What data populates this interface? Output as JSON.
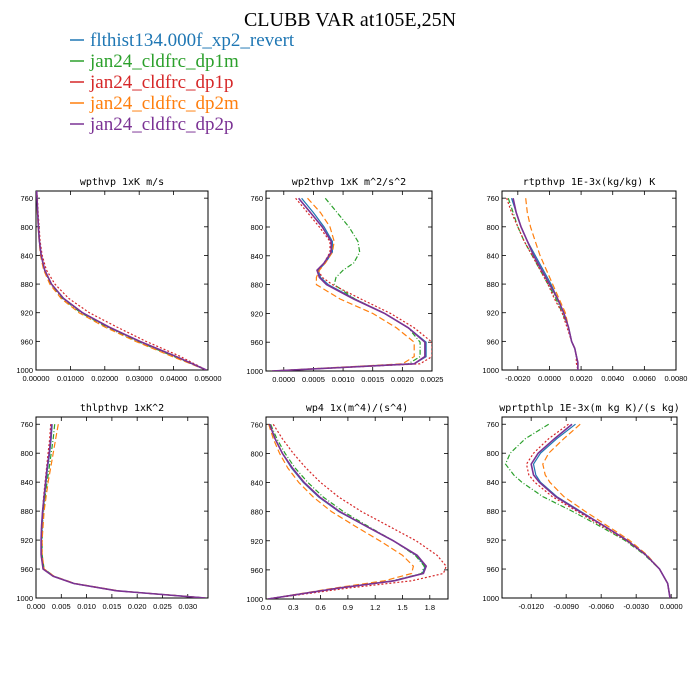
{
  "title": "CLUBB VAR at105E,25N",
  "legend": [
    {
      "label": "flthist134.000f_xp2_revert",
      "color": "#1f77b4"
    },
    {
      "label": "jan24_cldfrc_dp1m",
      "color": "#2ca02c"
    },
    {
      "label": "jan24_cldfrc_dp1p",
      "color": "#d62728"
    },
    {
      "label": "jan24_cldfrc_dp2m",
      "color": "#ff7f0e"
    },
    {
      "label": "jan24_cldfrc_dp2p",
      "color": "#7b3294"
    }
  ],
  "chart_data": [
    {
      "type": "line",
      "title": "wpthvp  1xK m/s",
      "xlim": [
        0,
        0.05
      ],
      "ylim": [
        750,
        1000
      ],
      "xticks": [
        "0.00000",
        "0.01000",
        "0.02000",
        "0.03000",
        "0.04000",
        "0.05000"
      ],
      "yticks": [
        "760",
        "800",
        "840",
        "880",
        "920",
        "960",
        "1000"
      ],
      "y": [
        750,
        760,
        780,
        800,
        820,
        840,
        860,
        880,
        900,
        920,
        940,
        960,
        980,
        1000
      ],
      "series": [
        {
          "x": [
            0.0002,
            0.0003,
            0.0005,
            0.0007,
            0.001,
            0.0015,
            0.0025,
            0.0045,
            0.008,
            0.0135,
            0.021,
            0.03,
            0.04,
            0.0495
          ]
        },
        {
          "x": [
            0.0002,
            0.0003,
            0.0005,
            0.0007,
            0.001,
            0.0015,
            0.0024,
            0.0043,
            0.0077,
            0.013,
            0.0205,
            0.0295,
            0.0395,
            0.0495
          ]
        },
        {
          "x": [
            0.0002,
            0.0004,
            0.0006,
            0.0009,
            0.0012,
            0.0018,
            0.003,
            0.0055,
            0.0095,
            0.0155,
            0.0235,
            0.032,
            0.0415,
            0.0495
          ]
        },
        {
          "x": [
            0.0002,
            0.0003,
            0.0004,
            0.0006,
            0.0009,
            0.0013,
            0.0022,
            0.004,
            0.0073,
            0.0125,
            0.02,
            0.029,
            0.039,
            0.0495
          ]
        },
        {
          "x": [
            0.0002,
            0.0003,
            0.0005,
            0.0007,
            0.001,
            0.0015,
            0.0025,
            0.0045,
            0.008,
            0.0135,
            0.0212,
            0.0302,
            0.0402,
            0.0495
          ]
        }
      ]
    },
    {
      "type": "line",
      "title": "wp2thvp  1xK m^2/s^2",
      "xlim": [
        -0.0003,
        0.0025
      ],
      "ylim": [
        750,
        1000
      ],
      "xticks": [
        "0.0000",
        "0.0005",
        "0.0010",
        "0.0015",
        "0.0020",
        "0.0025"
      ],
      "yticks": [
        "760",
        "800",
        "840",
        "880",
        "920",
        "960",
        "1000"
      ],
      "y": [
        760,
        780,
        800,
        820,
        835,
        850,
        860,
        870,
        880,
        900,
        920,
        940,
        960,
        980,
        990,
        1000
      ],
      "series": [
        {
          "x": [
            0.0003,
            0.0005,
            0.00068,
            0.00082,
            0.00082,
            0.0007,
            0.00058,
            0.00062,
            0.00075,
            0.0012,
            0.0017,
            0.0021,
            0.0024,
            0.0024,
            0.0022,
            -0.0002
          ]
        },
        {
          "x": [
            0.0007,
            0.0009,
            0.0011,
            0.00125,
            0.00128,
            0.00118,
            0.001,
            0.00088,
            0.00085,
            0.0012,
            0.0017,
            0.0021,
            0.0023,
            0.0023,
            0.0021,
            -0.0002
          ]
        },
        {
          "x": [
            0.0002,
            0.0004,
            0.0006,
            0.00078,
            0.00078,
            0.00068,
            0.00058,
            0.00065,
            0.00082,
            0.0013,
            0.0018,
            0.0022,
            0.0025,
            0.0025,
            0.0023,
            -0.0002
          ]
        },
        {
          "x": [
            0.0004,
            0.00062,
            0.00078,
            0.00085,
            0.00082,
            0.0007,
            0.0006,
            0.00055,
            0.00055,
            0.00095,
            0.0015,
            0.0019,
            0.0022,
            0.0022,
            0.002,
            -0.0002
          ]
        },
        {
          "x": [
            0.00025,
            0.00045,
            0.00065,
            0.0008,
            0.0008,
            0.00068,
            0.00056,
            0.0006,
            0.00072,
            0.00118,
            0.0017,
            0.0021,
            0.00238,
            0.00238,
            0.0022,
            -0.0002
          ]
        }
      ]
    },
    {
      "type": "line",
      "title": "rtpthvp  1E-3x(kg/kg) K",
      "xlim": [
        -0.003,
        0.008
      ],
      "ylim": [
        750,
        1000
      ],
      "xticks": [
        "-0.0020",
        "0.0000",
        "0.0020",
        "0.0040",
        "0.0060",
        "0.0080"
      ],
      "yticks": [
        "760",
        "800",
        "840",
        "880",
        "920",
        "960",
        "1000"
      ],
      "y": [
        760,
        780,
        800,
        820,
        840,
        860,
        880,
        900,
        920,
        940,
        960,
        970,
        980,
        990,
        1000
      ],
      "series": [
        {
          "x": [
            -0.0024,
            -0.0021,
            -0.0018,
            -0.0014,
            -0.0009,
            -0.0004,
            0.0001,
            0.0005,
            0.0009,
            0.0012,
            0.0014,
            0.0016,
            0.0017,
            0.0018,
            0.0018
          ]
        },
        {
          "x": [
            -0.0026,
            -0.0023,
            -0.002,
            -0.0016,
            -0.0011,
            -0.0006,
            -0.0001,
            0.0004,
            0.0008,
            0.0012,
            0.0014,
            0.0016,
            0.0017,
            0.0018,
            0.0018
          ]
        },
        {
          "x": [
            -0.0027,
            -0.0024,
            -0.002,
            -0.0016,
            -0.0011,
            -0.0006,
            -0.0001,
            0.0003,
            0.0008,
            0.0011,
            0.0014,
            0.0016,
            0.0017,
            0.0017,
            0.0018
          ]
        },
        {
          "x": [
            -0.0015,
            -0.0014,
            -0.0012,
            -0.0009,
            -0.0006,
            -0.0002,
            0.0002,
            0.0006,
            0.001,
            0.0012,
            0.0014,
            0.0016,
            0.0017,
            0.0018,
            0.0018
          ]
        },
        {
          "x": [
            -0.0023,
            -0.0021,
            -0.0018,
            -0.0014,
            -0.001,
            -0.0005,
            0,
            0.0005,
            0.0009,
            0.0012,
            0.0014,
            0.0016,
            0.0017,
            0.0018,
            0.0018
          ]
        }
      ]
    },
    {
      "type": "line",
      "title": "thlpthvp  1xK^2",
      "xlim": [
        0,
        0.034
      ],
      "ylim": [
        750,
        1000
      ],
      "xticks": [
        "0.000",
        "0.005",
        "0.010",
        "0.015",
        "0.020",
        "0.025",
        "0.030"
      ],
      "yticks": [
        "760",
        "800",
        "840",
        "880",
        "920",
        "960",
        "1000"
      ],
      "y": [
        760,
        780,
        800,
        820,
        840,
        860,
        880,
        900,
        920,
        940,
        960,
        970,
        980,
        990,
        1000
      ],
      "series": [
        {
          "x": [
            0.0032,
            0.003,
            0.0027,
            0.0023,
            0.002,
            0.0017,
            0.0014,
            0.0012,
            0.0011,
            0.0011,
            0.0015,
            0.0035,
            0.0075,
            0.016,
            0.0335
          ]
        },
        {
          "x": [
            0.0037,
            0.0034,
            0.003,
            0.0026,
            0.0022,
            0.0018,
            0.0015,
            0.0013,
            0.0012,
            0.0012,
            0.0016,
            0.0036,
            0.0076,
            0.0162,
            0.0335
          ]
        },
        {
          "x": [
            0.0029,
            0.0027,
            0.0024,
            0.0021,
            0.0018,
            0.0015,
            0.0013,
            0.0011,
            0.001,
            0.001,
            0.0014,
            0.0034,
            0.0074,
            0.0158,
            0.0335
          ]
        },
        {
          "x": [
            0.0044,
            0.0039,
            0.0034,
            0.0029,
            0.0024,
            0.002,
            0.0016,
            0.0014,
            0.0012,
            0.0012,
            0.0016,
            0.0036,
            0.0077,
            0.0163,
            0.0335
          ]
        },
        {
          "x": [
            0.0031,
            0.0029,
            0.0026,
            0.0022,
            0.0019,
            0.0016,
            0.0013,
            0.0011,
            0.001,
            0.001,
            0.0014,
            0.0034,
            0.0075,
            0.016,
            0.0335
          ]
        }
      ]
    },
    {
      "type": "line",
      "title": "wp4  1x(m^4)/(s^4)",
      "xlim": [
        0,
        2
      ],
      "ylim": [
        750,
        1000
      ],
      "xticks": [
        "0.0",
        "0.3",
        "0.6",
        "0.9",
        "1.2",
        "1.5",
        "1.8"
      ],
      "yticks": [
        "760",
        "800",
        "840",
        "880",
        "920",
        "960",
        "1000"
      ],
      "y": [
        760,
        780,
        800,
        820,
        840,
        860,
        880,
        900,
        920,
        940,
        955,
        965,
        975,
        985,
        1000
      ],
      "series": [
        {
          "x": [
            0.04,
            0.1,
            0.18,
            0.28,
            0.41,
            0.58,
            0.8,
            1.1,
            1.4,
            1.65,
            1.75,
            1.72,
            1.4,
            0.8,
            0.02
          ]
        },
        {
          "x": [
            0.05,
            0.12,
            0.21,
            0.32,
            0.46,
            0.63,
            0.85,
            1.12,
            1.4,
            1.64,
            1.74,
            1.71,
            1.39,
            0.79,
            0.02
          ]
        },
        {
          "x": [
            0.08,
            0.18,
            0.3,
            0.44,
            0.6,
            0.8,
            1.05,
            1.35,
            1.65,
            1.88,
            1.98,
            1.95,
            1.6,
            0.9,
            0.02
          ]
        },
        {
          "x": [
            0.03,
            0.08,
            0.15,
            0.24,
            0.36,
            0.52,
            0.72,
            0.98,
            1.25,
            1.5,
            1.62,
            1.6,
            1.3,
            0.75,
            0.02
          ]
        },
        {
          "x": [
            0.04,
            0.1,
            0.18,
            0.29,
            0.42,
            0.59,
            0.81,
            1.1,
            1.4,
            1.66,
            1.76,
            1.73,
            1.41,
            0.8,
            0.02
          ]
        }
      ]
    },
    {
      "type": "line",
      "title": "wprtpthlp  1E-3x(m kg K)/(s kg)",
      "xlim": [
        -0.0145,
        0.0005
      ],
      "ylim": [
        750,
        1000
      ],
      "xticks": [
        "-0.0120",
        "-0.0090",
        "-0.0060",
        "-0.0030",
        "0.0000"
      ],
      "yticks": [
        "760",
        "800",
        "840",
        "880",
        "920",
        "960",
        "1000"
      ],
      "y": [
        760,
        780,
        800,
        815,
        830,
        840,
        860,
        880,
        900,
        920,
        940,
        960,
        980,
        1000
      ],
      "series": [
        {
          "x": [
            -0.0082,
            -0.0098,
            -0.0112,
            -0.0118,
            -0.0116,
            -0.0112,
            -0.0098,
            -0.0078,
            -0.0058,
            -0.0038,
            -0.0022,
            -0.001,
            -0.0003,
            -0.0001
          ]
        },
        {
          "x": [
            -0.0105,
            -0.0125,
            -0.0138,
            -0.0142,
            -0.0135,
            -0.0128,
            -0.011,
            -0.0085,
            -0.0062,
            -0.004,
            -0.0023,
            -0.001,
            -0.0003,
            -0.0001
          ]
        },
        {
          "x": [
            -0.0088,
            -0.0105,
            -0.0118,
            -0.0124,
            -0.0122,
            -0.0117,
            -0.0102,
            -0.0081,
            -0.006,
            -0.0039,
            -0.0022,
            -0.001,
            -0.0003,
            -0.0001
          ]
        },
        {
          "x": [
            -0.0078,
            -0.0092,
            -0.0105,
            -0.011,
            -0.0108,
            -0.0104,
            -0.0092,
            -0.0074,
            -0.0055,
            -0.0036,
            -0.0021,
            -0.001,
            -0.0003,
            -0.0001
          ]
        },
        {
          "x": [
            -0.0085,
            -0.01,
            -0.0114,
            -0.012,
            -0.0118,
            -0.0113,
            -0.0099,
            -0.0079,
            -0.0058,
            -0.0038,
            -0.0022,
            -0.001,
            -0.0003,
            -0.0001
          ]
        }
      ]
    }
  ]
}
